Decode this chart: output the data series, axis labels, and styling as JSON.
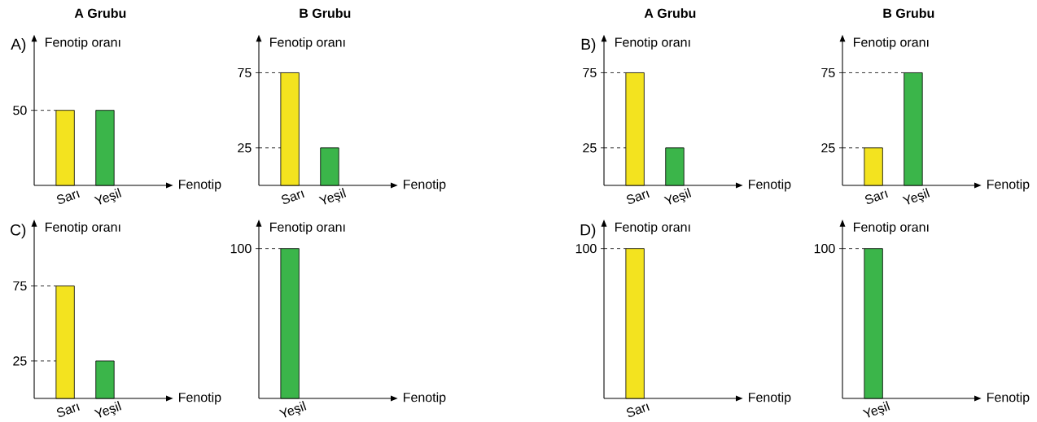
{
  "chart_data": [
    {
      "type": "bar",
      "title": "A Grubu",
      "annotations": [
        "A)"
      ],
      "ylabel": "Fenotip oranı",
      "xlabel": "Fenotip",
      "categories": [
        "Sarı",
        "Yeşil"
      ],
      "values": [
        50,
        50
      ],
      "colors": [
        "#f3e31f",
        "#3bb54a"
      ],
      "ylim": [
        0,
        96
      ],
      "yticks": [
        50
      ],
      "ref_lines": [
        {
          "axis": "y",
          "value": 50,
          "line_style": "dashed"
        }
      ]
    },
    {
      "type": "bar",
      "title": "B Grubu",
      "ylabel": "Fenotip oranı",
      "xlabel": "Fenotip",
      "categories": [
        "Sarı",
        "Yeşil"
      ],
      "values": [
        75,
        25
      ],
      "colors": [
        "#f3e31f",
        "#3bb54a"
      ],
      "ylim": [
        0,
        96
      ],
      "yticks": [
        25,
        75
      ],
      "ref_lines": [
        {
          "axis": "y",
          "value": 75,
          "line_style": "dashed"
        },
        {
          "axis": "y",
          "value": 25,
          "line_style": "dashed"
        }
      ]
    },
    {
      "type": "bar",
      "title": "A Grubu",
      "annotations": [
        "B)"
      ],
      "ylabel": "Fenotip oranı",
      "xlabel": "Fenotip",
      "categories": [
        "Sarı",
        "Yeşil"
      ],
      "values": [
        75,
        25
      ],
      "colors": [
        "#f3e31f",
        "#3bb54a"
      ],
      "ylim": [
        0,
        96
      ],
      "yticks": [
        25,
        75
      ],
      "ref_lines": [
        {
          "axis": "y",
          "value": 75,
          "line_style": "dashed"
        },
        {
          "axis": "y",
          "value": 25,
          "line_style": "dashed"
        }
      ]
    },
    {
      "type": "bar",
      "title": "B Grubu",
      "ylabel": "Fenotip oranı",
      "xlabel": "Fenotip",
      "categories": [
        "Sarı",
        "Yeşil"
      ],
      "values": [
        25,
        75
      ],
      "colors": [
        "#f3e31f",
        "#3bb54a"
      ],
      "ylim": [
        0,
        96
      ],
      "yticks": [
        25,
        75
      ],
      "ref_lines": [
        {
          "axis": "y",
          "value": 75,
          "line_style": "dashed"
        },
        {
          "axis": "y",
          "value": 25,
          "line_style": "dashed"
        }
      ]
    },
    {
      "type": "bar",
      "annotations": [
        "C)"
      ],
      "ylabel": "Fenotip oranı",
      "xlabel": "Fenotip",
      "categories": [
        "Sarı",
        "Yeşil"
      ],
      "values": [
        75,
        25
      ],
      "colors": [
        "#f3e31f",
        "#3bb54a"
      ],
      "ylim": [
        0,
        115
      ],
      "yticks": [
        25,
        75
      ],
      "ref_lines": [
        {
          "axis": "y",
          "value": 75,
          "line_style": "dashed"
        },
        {
          "axis": "y",
          "value": 25,
          "line_style": "dashed"
        }
      ]
    },
    {
      "type": "bar",
      "ylabel": "Fenotip oranı",
      "xlabel": "Fenotip",
      "categories": [
        "Yeşil"
      ],
      "values": [
        100
      ],
      "colors": [
        "#3bb54a"
      ],
      "ylim": [
        0,
        115
      ],
      "yticks": [
        100
      ],
      "ref_lines": [
        {
          "axis": "y",
          "value": 100,
          "line_style": "dashed"
        }
      ]
    },
    {
      "type": "bar",
      "annotations": [
        "D)"
      ],
      "ylabel": "Fenotip oranı",
      "xlabel": "Fenotip",
      "categories": [
        "Sarı"
      ],
      "values": [
        100
      ],
      "colors": [
        "#f3e31f"
      ],
      "ylim": [
        0,
        115
      ],
      "yticks": [
        100
      ],
      "ref_lines": [
        {
          "axis": "y",
          "value": 100,
          "line_style": "dashed"
        }
      ]
    },
    {
      "type": "bar",
      "ylabel": "Fenotip oranı",
      "xlabel": "Fenotip",
      "categories": [
        "Yeşil"
      ],
      "values": [
        100
      ],
      "colors": [
        "#3bb54a"
      ],
      "ylim": [
        0,
        115
      ],
      "yticks": [
        100
      ],
      "ref_lines": [
        {
          "axis": "y",
          "value": 100,
          "line_style": "dashed"
        }
      ]
    }
  ]
}
